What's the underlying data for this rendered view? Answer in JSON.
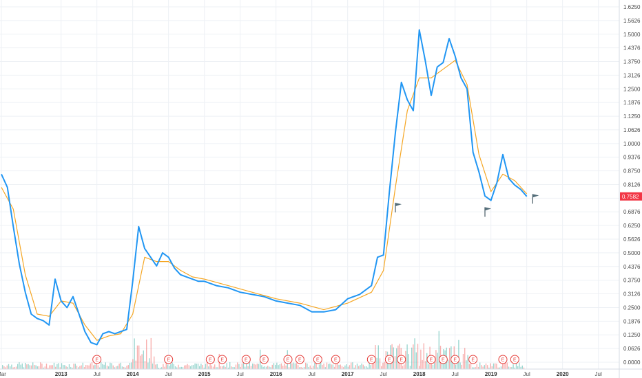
{
  "chart_data": {
    "type": "line",
    "title": "",
    "xlabel": "",
    "ylabel": "",
    "grid": true,
    "y_scale": "log",
    "y_ticks": [
      "1.6250",
      "1.5626",
      "1.5000",
      "1.4376",
      "1.3750",
      "1.3126",
      "1.2500",
      "1.1876",
      "1.1250",
      "1.0626",
      "1.0000",
      "0.9376",
      "0.8750",
      "0.8126",
      "0.7500",
      "0.6876",
      "0.6250",
      "0.5626",
      "0.5000",
      "0.4376",
      "0.3750",
      "0.3126",
      "0.2500",
      "0.1876",
      "0.1250",
      "0.0626",
      "0.0000"
    ],
    "x_ticks": [
      {
        "label": "Mar",
        "x": "2012-03",
        "bold": false
      },
      {
        "label": "2013",
        "x": "2013-01",
        "bold": true
      },
      {
        "label": "Jul",
        "x": "2013-07",
        "bold": false
      },
      {
        "label": "2014",
        "x": "2014-01",
        "bold": true
      },
      {
        "label": "Jul",
        "x": "2014-07",
        "bold": false
      },
      {
        "label": "2015",
        "x": "2015-01",
        "bold": true
      },
      {
        "label": "Jul",
        "x": "2015-07",
        "bold": false
      },
      {
        "label": "2016",
        "x": "2016-01",
        "bold": true
      },
      {
        "label": "Jul",
        "x": "2016-07",
        "bold": false
      },
      {
        "label": "2017",
        "x": "2017-01",
        "bold": true
      },
      {
        "label": "Jul",
        "x": "2017-07",
        "bold": false
      },
      {
        "label": "2018",
        "x": "2018-01",
        "bold": true
      },
      {
        "label": "Jul",
        "x": "2018-07",
        "bold": false
      },
      {
        "label": "2019",
        "x": "2019-01",
        "bold": true
      },
      {
        "label": "Jul",
        "x": "2019-07",
        "bold": false
      },
      {
        "label": "2020",
        "x": "2020-01",
        "bold": true
      },
      {
        "label": "Jul",
        "x": "2020-07",
        "bold": false
      }
    ],
    "last_price": {
      "label": "0.7582",
      "value": 0.7582,
      "color": "#f23645"
    },
    "series": [
      {
        "color": "#2196f3",
        "points": [
          [
            "2012-03",
            0.86
          ],
          [
            "2012-04",
            0.8
          ],
          [
            "2012-05",
            0.62
          ],
          [
            "2012-06",
            0.45
          ],
          [
            "2012-07",
            0.32
          ],
          [
            "2012-08",
            0.22
          ],
          [
            "2012-09",
            0.2
          ],
          [
            "2012-10",
            0.19
          ],
          [
            "2012-11",
            0.17
          ],
          [
            "2012-12",
            0.38
          ],
          [
            "2013-01",
            0.28
          ],
          [
            "2013-02",
            0.25
          ],
          [
            "2013-03",
            0.3
          ],
          [
            "2013-04",
            0.22
          ],
          [
            "2013-05",
            0.14
          ],
          [
            "2013-06",
            0.09
          ],
          [
            "2013-07",
            0.08
          ],
          [
            "2013-08",
            0.13
          ],
          [
            "2013-09",
            0.14
          ],
          [
            "2013-10",
            0.13
          ],
          [
            "2013-11",
            0.14
          ],
          [
            "2013-12",
            0.15
          ],
          [
            "2014-01",
            0.37
          ],
          [
            "2014-02",
            0.62
          ],
          [
            "2014-03",
            0.52
          ],
          [
            "2014-04",
            0.48
          ],
          [
            "2014-05",
            0.44
          ],
          [
            "2014-06",
            0.5
          ],
          [
            "2014-07",
            0.48
          ],
          [
            "2014-08",
            0.43
          ],
          [
            "2014-09",
            0.4
          ],
          [
            "2014-10",
            0.39
          ],
          [
            "2014-11",
            0.38
          ],
          [
            "2014-12",
            0.37
          ],
          [
            "2015-01",
            0.37
          ],
          [
            "2015-03",
            0.35
          ],
          [
            "2015-05",
            0.34
          ],
          [
            "2015-07",
            0.32
          ],
          [
            "2015-09",
            0.31
          ],
          [
            "2015-11",
            0.3
          ],
          [
            "2016-01",
            0.28
          ],
          [
            "2016-03",
            0.27
          ],
          [
            "2016-05",
            0.26
          ],
          [
            "2016-07",
            0.23
          ],
          [
            "2016-09",
            0.23
          ],
          [
            "2016-11",
            0.24
          ],
          [
            "2017-01",
            0.29
          ],
          [
            "2017-03",
            0.31
          ],
          [
            "2017-05",
            0.35
          ],
          [
            "2017-06",
            0.48
          ],
          [
            "2017-07",
            0.49
          ],
          [
            "2017-08",
            0.78
          ],
          [
            "2017-09",
            1.05
          ],
          [
            "2017-10",
            1.28
          ],
          [
            "2017-11",
            1.2
          ],
          [
            "2017-12",
            1.15
          ],
          [
            "2018-01",
            1.52
          ],
          [
            "2018-02",
            1.38
          ],
          [
            "2018-03",
            1.22
          ],
          [
            "2018-04",
            1.35
          ],
          [
            "2018-05",
            1.37
          ],
          [
            "2018-06",
            1.48
          ],
          [
            "2018-07",
            1.4
          ],
          [
            "2018-08",
            1.3
          ],
          [
            "2018-09",
            1.25
          ],
          [
            "2018-10",
            0.96
          ],
          [
            "2018-11",
            0.87
          ],
          [
            "2018-12",
            0.76
          ],
          [
            "2019-01",
            0.74
          ],
          [
            "2019-02",
            0.82
          ],
          [
            "2019-03",
            0.95
          ],
          [
            "2019-04",
            0.84
          ],
          [
            "2019-05",
            0.81
          ],
          [
            "2019-06",
            0.79
          ],
          [
            "2019-07",
            0.7582
          ]
        ]
      },
      {
        "color": "#f5a623",
        "points": [
          [
            "2012-03",
            0.8
          ],
          [
            "2012-05",
            0.7
          ],
          [
            "2012-07",
            0.4
          ],
          [
            "2012-09",
            0.22
          ],
          [
            "2012-11",
            0.21
          ],
          [
            "2013-01",
            0.28
          ],
          [
            "2013-03",
            0.27
          ],
          [
            "2013-05",
            0.17
          ],
          [
            "2013-07",
            0.1
          ],
          [
            "2013-09",
            0.12
          ],
          [
            "2013-11",
            0.13
          ],
          [
            "2014-01",
            0.22
          ],
          [
            "2014-03",
            0.48
          ],
          [
            "2014-05",
            0.46
          ],
          [
            "2014-07",
            0.46
          ],
          [
            "2014-09",
            0.42
          ],
          [
            "2014-11",
            0.39
          ],
          [
            "2015-01",
            0.38
          ],
          [
            "2015-05",
            0.35
          ],
          [
            "2015-09",
            0.32
          ],
          [
            "2016-01",
            0.29
          ],
          [
            "2016-05",
            0.27
          ],
          [
            "2016-09",
            0.24
          ],
          [
            "2017-01",
            0.27
          ],
          [
            "2017-05",
            0.32
          ],
          [
            "2017-07",
            0.42
          ],
          [
            "2017-09",
            0.8
          ],
          [
            "2017-11",
            1.15
          ],
          [
            "2018-01",
            1.3
          ],
          [
            "2018-03",
            1.3
          ],
          [
            "2018-05",
            1.34
          ],
          [
            "2018-07",
            1.38
          ],
          [
            "2018-09",
            1.27
          ],
          [
            "2018-11",
            0.95
          ],
          [
            "2019-01",
            0.78
          ],
          [
            "2019-03",
            0.86
          ],
          [
            "2019-05",
            0.83
          ],
          [
            "2019-07",
            0.77
          ]
        ]
      }
    ],
    "events": [
      {
        "label": "E",
        "x": "2013-07"
      },
      {
        "label": "E",
        "x": "2014-07"
      },
      {
        "label": "E",
        "x": "2015-02"
      },
      {
        "label": "E",
        "x": "2015-04"
      },
      {
        "label": "E",
        "x": "2015-08"
      },
      {
        "label": "E",
        "x": "2015-11"
      },
      {
        "label": "E",
        "x": "2016-03"
      },
      {
        "label": "E",
        "x": "2016-05"
      },
      {
        "label": "E",
        "x": "2016-08"
      },
      {
        "label": "E",
        "x": "2016-11"
      },
      {
        "label": "E",
        "x": "2017-05"
      },
      {
        "label": "E",
        "x": "2017-08"
      },
      {
        "label": "E",
        "x": "2017-10"
      },
      {
        "label": "E",
        "x": "2018-03"
      },
      {
        "label": "E",
        "x": "2018-05"
      },
      {
        "label": "E",
        "x": "2018-07"
      },
      {
        "label": "E",
        "x": "2018-10"
      },
      {
        "label": "E",
        "x": "2019-03"
      },
      {
        "label": "E",
        "x": "2019-05"
      }
    ],
    "flags": [
      {
        "x": "2017-09",
        "value": 0.71
      },
      {
        "x": "2018-12",
        "value": 0.69
      },
      {
        "x": "2019-08",
        "value": 0.75
      }
    ]
  }
}
